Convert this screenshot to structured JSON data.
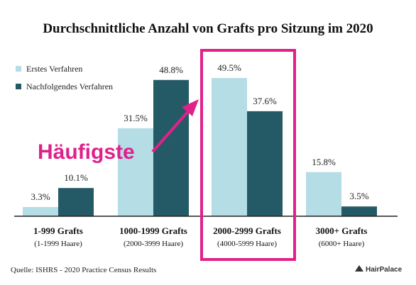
{
  "colors": {
    "first": "#b4dde6",
    "subsequent": "#245a66",
    "highlight": "#e0218a",
    "axis": "#222222"
  },
  "chart_data": {
    "type": "bar",
    "title": "Durchschnittliche Anzahl von Grafts pro Sitzung im 2020",
    "categories": [
      "1-999 Grafts",
      "1000-1999 Grafts",
      "2000-2999 Grafts",
      "3000+ Grafts"
    ],
    "category_sublabels": [
      "(1-1999 Haare)",
      "(2000-3999 Haare)",
      "(4000-5999 Haare)",
      "(6000+ Haare)"
    ],
    "series": [
      {
        "name": "Erstes Verfahren",
        "values": [
          3.3,
          31.5,
          49.5,
          15.8
        ],
        "labels": [
          "3.3%",
          "31.5%",
          "49.5%",
          "15.8%"
        ]
      },
      {
        "name": "Nachfolgendes Verfahren",
        "values": [
          10.1,
          48.8,
          37.6,
          3.5
        ],
        "labels": [
          "10.1%",
          "48.8%",
          "37.6%",
          "3.5%"
        ]
      }
    ],
    "ylim": [
      0,
      55
    ],
    "grid": false,
    "legend_position": "top-left",
    "highlight_category": "2000-2999 Grafts",
    "annotation": "Häufigste",
    "source": "Quelle:  ISHRS - 2020 Practice Census Results",
    "brand": "HairPalace"
  }
}
